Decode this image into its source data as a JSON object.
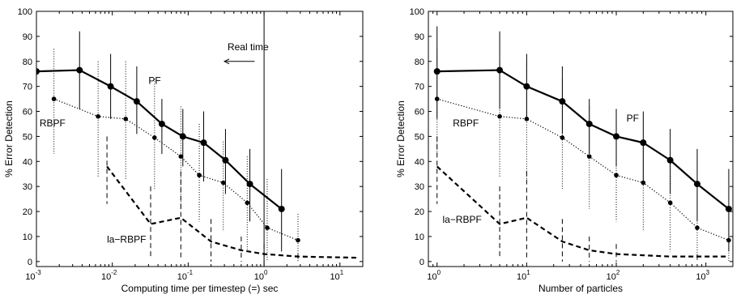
{
  "chart_data": [
    {
      "type": "line",
      "xscale": "log",
      "xlim": [
        0.001,
        20
      ],
      "ylim": [
        -2,
        100
      ],
      "xlabel": "Computing time per timestep (=) sec",
      "ylabel": "% Error Detection",
      "xtick_labels": [
        {
          "base": "10",
          "exp": "-3"
        },
        {
          "base": "10",
          "exp": "-2"
        },
        {
          "base": "10",
          "exp": "-1"
        },
        {
          "base": "10",
          "exp": "0"
        },
        {
          "base": "10",
          "exp": "1"
        }
      ],
      "yticks": [
        0,
        10,
        20,
        30,
        40,
        50,
        60,
        70,
        80,
        90,
        100
      ],
      "ytick_labels": [
        "0",
        "10",
        "20",
        "30",
        "40",
        "50",
        "60",
        "70",
        "80",
        "90",
        "100"
      ],
      "annotations": [
        {
          "text": "PF",
          "x": 0.03,
          "y": 71
        },
        {
          "text": "RBPF",
          "x": 0.0011,
          "y": 54
        },
        {
          "text": "la−RBPF",
          "x": 0.0085,
          "y": 7.5
        },
        {
          "text": "Real time",
          "x": 0.33,
          "y": 84.5
        }
      ],
      "reference_line": {
        "x": 1.0,
        "label": "Real time",
        "arrow_from_x": 0.75,
        "arrow_to_x": 0.3,
        "arrow_y": 80
      },
      "series": [
        {
          "name": "PF",
          "style": "solid",
          "marker": "circle-large",
          "points": [
            {
              "x": 0.001,
              "y": 76,
              "lo": 57,
              "hi": 94
            },
            {
              "x": 0.0037,
              "y": 76.5,
              "lo": 61,
              "hi": 92
            },
            {
              "x": 0.0095,
              "y": 70,
              "lo": 57,
              "hi": 83
            },
            {
              "x": 0.021,
              "y": 64,
              "lo": 51,
              "hi": 78
            },
            {
              "x": 0.045,
              "y": 55,
              "lo": 43,
              "hi": 65
            },
            {
              "x": 0.085,
              "y": 50,
              "lo": 38,
              "hi": 61
            },
            {
              "x": 0.16,
              "y": 47.5,
              "lo": 32,
              "hi": 60
            },
            {
              "x": 0.31,
              "y": 40.5,
              "lo": 27,
              "hi": 53
            },
            {
              "x": 0.65,
              "y": 31,
              "lo": 16,
              "hi": 45
            },
            {
              "x": 1.7,
              "y": 21,
              "lo": 4,
              "hi": 37
            }
          ]
        },
        {
          "name": "RBPF",
          "style": "dotted",
          "marker": "dot",
          "points": [
            {
              "x": 0.0017,
              "y": 65,
              "lo": 43,
              "hi": 85
            },
            {
              "x": 0.0065,
              "y": 58,
              "lo": 34,
              "hi": 80
            },
            {
              "x": 0.015,
              "y": 57,
              "lo": 33,
              "hi": 80
            },
            {
              "x": 0.036,
              "y": 49.5,
              "lo": 29,
              "hi": 73
            },
            {
              "x": 0.08,
              "y": 42,
              "lo": 21,
              "hi": 62
            },
            {
              "x": 0.14,
              "y": 34.5,
              "lo": 16,
              "hi": 55
            },
            {
              "x": 0.29,
              "y": 31.5,
              "lo": 12,
              "hi": 48
            },
            {
              "x": 0.6,
              "y": 23.5,
              "lo": 4,
              "hi": 42
            },
            {
              "x": 1.1,
              "y": 13.5,
              "lo": 0,
              "hi": 33
            },
            {
              "x": 2.8,
              "y": 8.5,
              "lo": 0,
              "hi": 19
            }
          ]
        },
        {
          "name": "la−RBPF",
          "style": "dashed",
          "marker": "none",
          "points": [
            {
              "x": 0.0085,
              "y": 38,
              "lo": 23,
              "hi": 50
            },
            {
              "x": 0.032,
              "y": 15,
              "lo": 1,
              "hi": 30
            },
            {
              "x": 0.08,
              "y": 17.5,
              "lo": 1,
              "hi": 36
            },
            {
              "x": 0.2,
              "y": 8,
              "lo": 0,
              "hi": 17
            },
            {
              "x": 0.5,
              "y": 4.5,
              "lo": 0,
              "hi": 10
            },
            {
              "x": 1.0,
              "y": 3,
              "lo": 0,
              "hi": 7
            },
            {
              "x": 2.8,
              "y": 2,
              "lo": 0,
              "hi": 3
            },
            {
              "x": 18,
              "y": 1.5
            }
          ]
        }
      ]
    },
    {
      "type": "line",
      "xscale": "log",
      "xlim": [
        0.8,
        2000
      ],
      "ylim": [
        -2,
        100
      ],
      "xlabel": "Number of particles",
      "ylabel": "% Error Detection",
      "xtick_labels": [
        {
          "base": "10",
          "exp": "0"
        },
        {
          "base": "10",
          "exp": "1"
        },
        {
          "base": "10",
          "exp": "2"
        },
        {
          "base": "10",
          "exp": "3"
        }
      ],
      "yticks": [
        0,
        10,
        20,
        30,
        40,
        50,
        60,
        70,
        80,
        90,
        100
      ],
      "ytick_labels": [
        "0",
        "10",
        "20",
        "30",
        "40",
        "50",
        "60",
        "70",
        "80",
        "90",
        "100"
      ],
      "annotations": [
        {
          "text": "PF",
          "x": 130,
          "y": 56
        },
        {
          "text": "RBPF",
          "x": 1.5,
          "y": 54
        },
        {
          "text": "la−RBPF",
          "x": 1.15,
          "y": 15.5
        }
      ],
      "series": [
        {
          "name": "PF",
          "style": "solid",
          "marker": "circle-large",
          "points": [
            {
              "x": 1,
              "y": 76,
              "lo": 57,
              "hi": 94
            },
            {
              "x": 5,
              "y": 76.5,
              "lo": 61,
              "hi": 92
            },
            {
              "x": 10,
              "y": 70,
              "lo": 57,
              "hi": 83
            },
            {
              "x": 25,
              "y": 64,
              "lo": 51,
              "hi": 78
            },
            {
              "x": 50,
              "y": 55,
              "lo": 43,
              "hi": 65
            },
            {
              "x": 100,
              "y": 50,
              "lo": 38,
              "hi": 61
            },
            {
              "x": 200,
              "y": 47.5,
              "lo": 32,
              "hi": 60
            },
            {
              "x": 400,
              "y": 40.5,
              "lo": 27,
              "hi": 53
            },
            {
              "x": 800,
              "y": 31,
              "lo": 16,
              "hi": 45
            },
            {
              "x": 1800,
              "y": 21,
              "lo": 4,
              "hi": 37
            }
          ]
        },
        {
          "name": "RBPF",
          "style": "dotted",
          "marker": "dot",
          "points": [
            {
              "x": 1,
              "y": 65,
              "lo": 43,
              "hi": 85
            },
            {
              "x": 5,
              "y": 58,
              "lo": 34,
              "hi": 80
            },
            {
              "x": 10,
              "y": 57,
              "lo": 33,
              "hi": 80
            },
            {
              "x": 25,
              "y": 49.5,
              "lo": 29,
              "hi": 73
            },
            {
              "x": 50,
              "y": 42,
              "lo": 21,
              "hi": 62
            },
            {
              "x": 100,
              "y": 34.5,
              "lo": 16,
              "hi": 55
            },
            {
              "x": 200,
              "y": 31.5,
              "lo": 12,
              "hi": 48
            },
            {
              "x": 400,
              "y": 23.5,
              "lo": 4,
              "hi": 42
            },
            {
              "x": 800,
              "y": 13.5,
              "lo": 0,
              "hi": 33
            },
            {
              "x": 1800,
              "y": 8.5,
              "lo": 0,
              "hi": 19
            }
          ]
        },
        {
          "name": "la−RBPF",
          "style": "dashed",
          "marker": "none",
          "points": [
            {
              "x": 1,
              "y": 38,
              "lo": 23,
              "hi": 50
            },
            {
              "x": 5,
              "y": 15,
              "lo": 1,
              "hi": 30
            },
            {
              "x": 10,
              "y": 17.5,
              "lo": 1,
              "hi": 36
            },
            {
              "x": 25,
              "y": 8,
              "lo": 0,
              "hi": 17
            },
            {
              "x": 50,
              "y": 4.5,
              "lo": 0,
              "hi": 10
            },
            {
              "x": 100,
              "y": 3,
              "lo": 0,
              "hi": 7
            },
            {
              "x": 200,
              "y": 2.5
            },
            {
              "x": 400,
              "y": 2
            },
            {
              "x": 800,
              "y": 2,
              "lo": 0,
              "hi": 3
            },
            {
              "x": 1800,
              "y": 2
            }
          ]
        }
      ]
    }
  ]
}
